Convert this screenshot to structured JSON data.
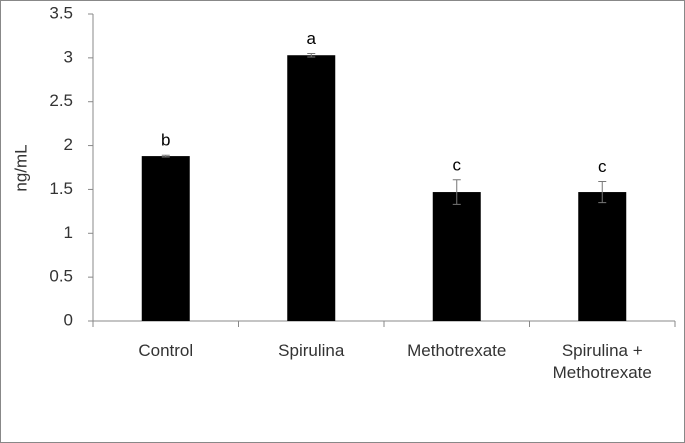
{
  "chart_data": {
    "type": "bar",
    "categories": [
      "Control",
      "Spirulina",
      "Methotrexate",
      "Spirulina + Methotrexate"
    ],
    "values": [
      1.88,
      3.03,
      1.47,
      1.47
    ],
    "errors": [
      0.01,
      0.02,
      0.14,
      0.12
    ],
    "annotations": [
      "b",
      "a",
      "c",
      "c"
    ],
    "color": "#000000",
    "y_label": "ng/mL",
    "ylim": [
      0,
      3.5
    ],
    "yticks": [
      0,
      0.5,
      1,
      1.5,
      2,
      2.5,
      3,
      3.5
    ],
    "grid": false
  }
}
